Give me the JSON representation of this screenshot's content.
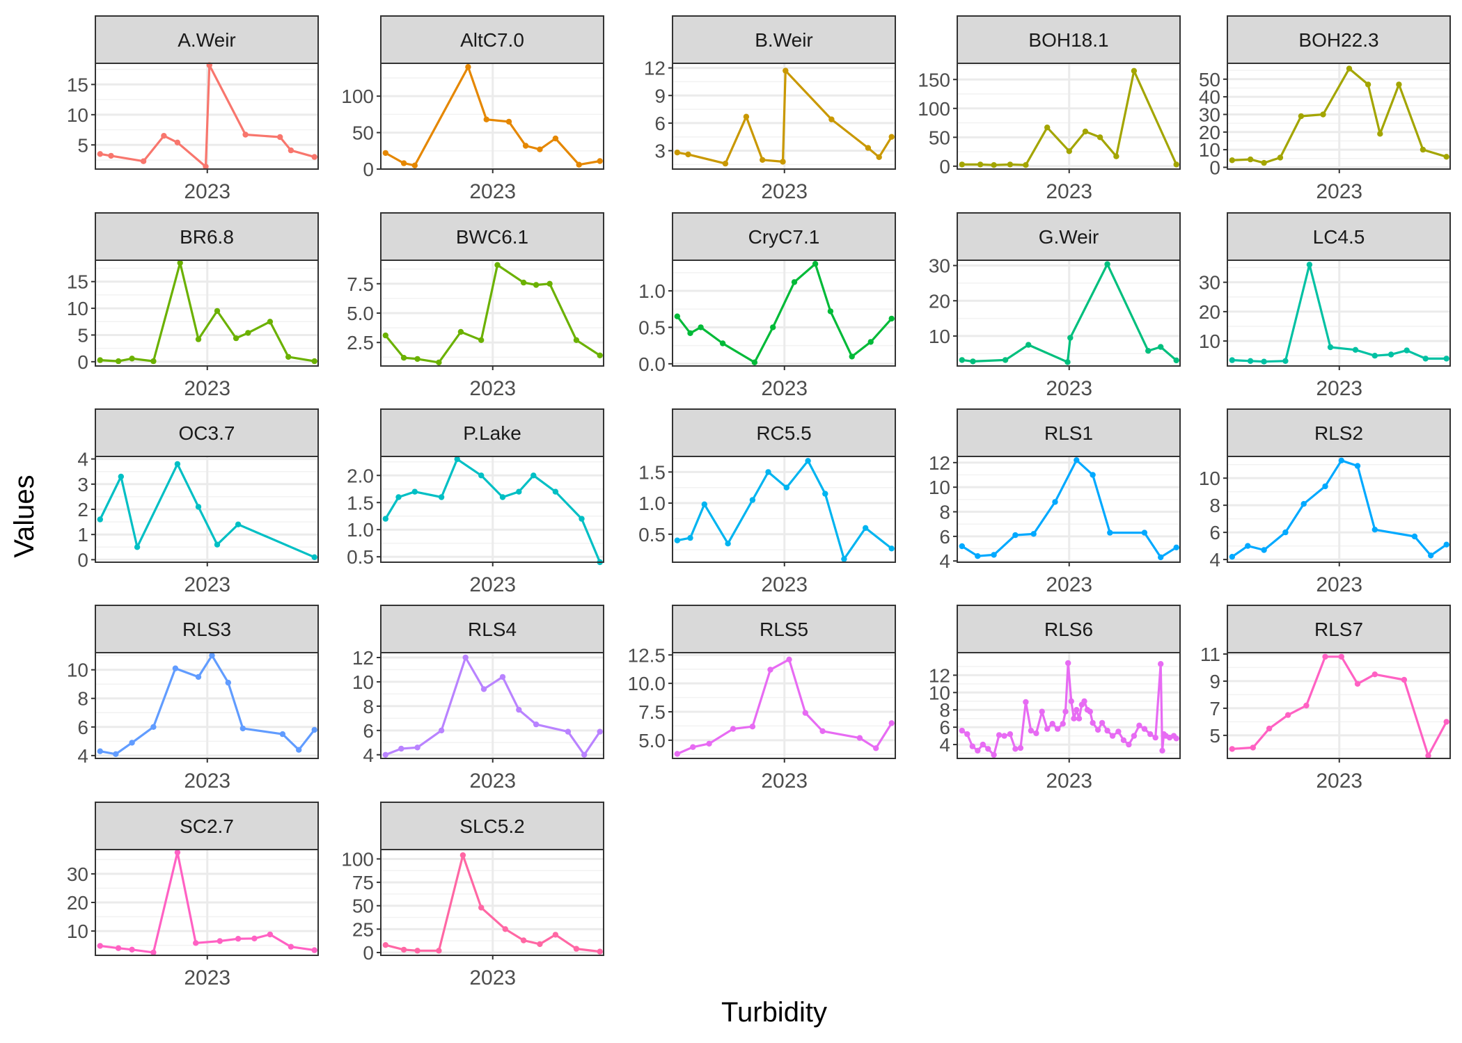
{
  "chart_data": {
    "type": "line",
    "title": "",
    "xlabel": "Turbidity",
    "ylabel": "Values",
    "grid": true,
    "legend": "none",
    "x_tick_label": "2023",
    "x_tick_date": "2023-01-01",
    "xlim": [
      "2022-06-01",
      "2023-08-01"
    ],
    "panels": [
      {
        "name": "A.Weir",
        "color": "#F8766D",
        "ylim": [
          1,
          18.5
        ],
        "yticks": [
          5,
          10,
          15
        ],
        "yticklabels": [
          "5",
          "10",
          "15"
        ],
        "x": [
          "2022-06-10",
          "2022-07-01",
          "2022-09-01",
          "2022-10-10",
          "2022-11-05",
          "2022-12-29",
          "2023-01-05",
          "2023-03-15",
          "2023-05-20",
          "2023-06-10",
          "2023-07-25"
        ],
        "values": [
          3.5,
          3.2,
          2.3,
          6.5,
          5.4,
          1.4,
          18.2,
          6.7,
          6.3,
          4.1,
          3.0
        ]
      },
      {
        "name": "AltC7.0",
        "color": "#E58700",
        "ylim": [
          0,
          145
        ],
        "yticks": [
          0,
          50,
          100
        ],
        "yticklabels": [
          "0",
          "50",
          "100"
        ],
        "x": [
          "2022-06-10",
          "2022-07-15",
          "2022-08-05",
          "2022-11-15",
          "2022-12-20",
          "2023-02-01",
          "2023-03-05",
          "2023-04-01",
          "2023-05-01",
          "2023-06-15",
          "2023-07-25"
        ],
        "values": [
          22,
          8,
          5,
          140,
          68,
          65,
          32,
          27,
          42,
          6,
          11
        ]
      },
      {
        "name": "B.Weir",
        "color": "#C99800",
        "ylim": [
          1,
          12.5
        ],
        "yticks": [
          3,
          6,
          9,
          12
        ],
        "yticklabels": [
          "3",
          "6",
          "9",
          "12"
        ],
        "x": [
          "2022-06-10",
          "2022-07-01",
          "2022-09-10",
          "2022-10-20",
          "2022-11-20",
          "2022-12-29",
          "2023-01-03",
          "2023-04-01",
          "2023-06-10",
          "2023-07-01",
          "2023-07-25"
        ],
        "values": [
          2.8,
          2.6,
          1.6,
          6.7,
          2.0,
          1.8,
          11.7,
          6.4,
          3.3,
          2.3,
          4.5
        ]
      },
      {
        "name": "BOH18.1",
        "color": "#A3A500",
        "ylim": [
          -5,
          178
        ],
        "yticks": [
          0,
          50,
          100,
          150
        ],
        "yticklabels": [
          "0",
          "50",
          "100",
          "150"
        ],
        "x": [
          "2022-06-10",
          "2022-07-15",
          "2022-08-10",
          "2022-09-10",
          "2022-10-10",
          "2022-11-20",
          "2023-01-01",
          "2023-02-01",
          "2023-03-01",
          "2023-04-01",
          "2023-05-05",
          "2023-07-25"
        ],
        "values": [
          3,
          3,
          2,
          3,
          2,
          67,
          26,
          60,
          50,
          17,
          165,
          3
        ]
      },
      {
        "name": "BOH22.3",
        "color": "#A3A500",
        "ylim": [
          -1,
          59
        ],
        "yticks": [
          0,
          10,
          20,
          30,
          40,
          50
        ],
        "yticklabels": [
          "0",
          "10",
          "20",
          "30",
          "40",
          "50"
        ],
        "x": [
          "2022-06-10",
          "2022-07-15",
          "2022-08-10",
          "2022-09-10",
          "2022-10-20",
          "2022-12-01",
          "2023-01-20",
          "2023-02-25",
          "2023-03-20",
          "2023-04-25",
          "2023-06-10",
          "2023-07-25"
        ],
        "values": [
          4,
          4.5,
          2.5,
          5.5,
          29,
          30,
          56,
          47,
          19,
          47,
          10,
          6
        ]
      },
      {
        "name": "BR6.8",
        "color": "#6BB100",
        "ylim": [
          -0.8,
          19
        ],
        "yticks": [
          0,
          5,
          10,
          15
        ],
        "yticklabels": [
          "0",
          "5",
          "10",
          "15"
        ],
        "x": [
          "2022-06-10",
          "2022-07-15",
          "2022-08-10",
          "2022-09-20",
          "2022-11-10",
          "2022-12-15",
          "2023-01-20",
          "2023-02-25",
          "2023-03-20",
          "2023-05-01",
          "2023-06-05",
          "2023-07-25"
        ],
        "values": [
          0.3,
          0.1,
          0.6,
          0.1,
          18.5,
          4.2,
          9.5,
          4.4,
          5.4,
          7.5,
          0.9,
          0.1
        ]
      },
      {
        "name": "BWC6.1",
        "color": "#6BB100",
        "ylim": [
          0.5,
          9.5
        ],
        "yticks": [
          2.5,
          5.0,
          7.5
        ],
        "yticklabels": [
          "2.5",
          "5.0",
          "7.5"
        ],
        "x": [
          "2022-06-10",
          "2022-07-15",
          "2022-08-10",
          "2022-09-20",
          "2022-11-01",
          "2022-12-10",
          "2023-01-10",
          "2023-03-01",
          "2023-03-25",
          "2023-04-20",
          "2023-06-10",
          "2023-07-25"
        ],
        "values": [
          3.1,
          1.2,
          1.1,
          0.8,
          3.4,
          2.7,
          9.1,
          7.6,
          7.4,
          7.5,
          2.7,
          1.4
        ]
      },
      {
        "name": "CryC7.1",
        "color": "#00BA38",
        "ylim": [
          -0.03,
          1.42
        ],
        "yticks": [
          0.0,
          0.5,
          1.0
        ],
        "yticklabels": [
          "0.0",
          "0.5",
          "1.0"
        ],
        "x": [
          "2022-06-10",
          "2022-07-05",
          "2022-07-25",
          "2022-09-05",
          "2022-11-05",
          "2022-12-10",
          "2023-01-20",
          "2023-03-01",
          "2023-03-30",
          "2023-05-10",
          "2023-06-15",
          "2023-07-25"
        ],
        "values": [
          0.65,
          0.42,
          0.5,
          0.28,
          0.02,
          0.5,
          1.12,
          1.37,
          0.72,
          0.1,
          0.3,
          0.62
        ]
      },
      {
        "name": "G.Weir",
        "color": "#00BF7D",
        "ylim": [
          1.5,
          31.5
        ],
        "yticks": [
          10,
          20,
          30
        ],
        "yticklabels": [
          "10",
          "20",
          "30"
        ],
        "x": [
          "2022-06-10",
          "2022-07-01",
          "2022-09-01",
          "2022-10-15",
          "2022-12-29",
          "2023-01-03",
          "2023-03-15",
          "2023-06-01",
          "2023-06-25",
          "2023-07-25"
        ],
        "values": [
          3.2,
          2.8,
          3.2,
          7.5,
          2.6,
          9.5,
          30.4,
          5.8,
          6.9,
          3.1
        ]
      },
      {
        "name": "LC4.5",
        "color": "#00C1A3",
        "ylim": [
          1.5,
          37.5
        ],
        "yticks": [
          10,
          20,
          30
        ],
        "yticklabels": [
          "10",
          "20",
          "30"
        ],
        "x": [
          "2022-06-10",
          "2022-07-15",
          "2022-08-10",
          "2022-09-20",
          "2022-11-05",
          "2022-12-15",
          "2023-02-01",
          "2023-03-10",
          "2023-04-10",
          "2023-05-10",
          "2023-06-15",
          "2023-07-25"
        ],
        "values": [
          3.5,
          3.2,
          3,
          3.2,
          36,
          7.9,
          7,
          5,
          5.4,
          6.8,
          4,
          4
        ]
      },
      {
        "name": "OC3.7",
        "color": "#00BFC4",
        "ylim": [
          -0.1,
          4.1
        ],
        "yticks": [
          0,
          1,
          2,
          3,
          4
        ],
        "yticklabels": [
          "0",
          "1",
          "2",
          "3",
          "4"
        ],
        "x": [
          "2022-06-10",
          "2022-07-20",
          "2022-08-20",
          "2022-11-05",
          "2022-12-15",
          "2023-01-20",
          "2023-03-01",
          "2023-07-25"
        ],
        "values": [
          1.6,
          3.3,
          0.5,
          3.8,
          2.1,
          0.6,
          1.4,
          0.1
        ]
      },
      {
        "name": "P.Lake",
        "color": "#00BFC4",
        "ylim": [
          0.4,
          2.35
        ],
        "yticks": [
          0.5,
          1.0,
          1.5,
          2.0
        ],
        "yticklabels": [
          "0.5",
          "1.0",
          "1.5",
          "2.0"
        ],
        "x": [
          "2022-06-10",
          "2022-07-05",
          "2022-08-05",
          "2022-09-25",
          "2022-10-25",
          "2022-12-10",
          "2023-01-20",
          "2023-02-20",
          "2023-03-20",
          "2023-05-01",
          "2023-06-20",
          "2023-07-25"
        ],
        "values": [
          1.2,
          1.6,
          1.7,
          1.6,
          2.3,
          2.0,
          1.6,
          1.7,
          2.0,
          1.7,
          1.2,
          0.4
        ]
      },
      {
        "name": "RC5.5",
        "color": "#00B4F0",
        "ylim": [
          0.05,
          1.75
        ],
        "yticks": [
          0.5,
          1.0,
          1.5
        ],
        "yticklabels": [
          "0.5",
          "1.0",
          "1.5"
        ],
        "x": [
          "2022-06-10",
          "2022-07-05",
          "2022-08-01",
          "2022-09-15",
          "2022-11-01",
          "2022-12-01",
          "2023-01-05",
          "2023-02-15",
          "2023-03-20",
          "2023-04-25",
          "2023-06-05",
          "2023-07-25"
        ],
        "values": [
          0.4,
          0.44,
          0.98,
          0.35,
          1.05,
          1.5,
          1.25,
          1.68,
          1.15,
          0.1,
          0.6,
          0.27
        ]
      },
      {
        "name": "RLS1",
        "color": "#00A9FF",
        "ylim": [
          3.9,
          12.5
        ],
        "yticks": [
          4,
          6,
          8,
          10,
          12
        ],
        "yticklabels": [
          "4",
          "6",
          "8",
          "10",
          "12"
        ],
        "x": [
          "2022-06-10",
          "2022-07-10",
          "2022-08-10",
          "2022-09-20",
          "2022-10-25",
          "2022-12-05",
          "2023-01-15",
          "2023-02-15",
          "2023-03-20",
          "2023-05-25",
          "2023-06-25",
          "2023-07-25"
        ],
        "values": [
          5.2,
          4.4,
          4.5,
          6.1,
          6.2,
          8.8,
          12.2,
          11.0,
          6.3,
          6.3,
          4.3,
          5.1
        ]
      },
      {
        "name": "RLS2",
        "color": "#00A9FF",
        "ylim": [
          3.8,
          11.6
        ],
        "yticks": [
          4,
          6,
          8,
          10
        ],
        "yticklabels": [
          "4",
          "6",
          "8",
          "10"
        ],
        "x": [
          "2022-06-10",
          "2022-07-10",
          "2022-08-10",
          "2022-09-20",
          "2022-10-25",
          "2022-12-05",
          "2023-01-05",
          "2023-02-05",
          "2023-03-10",
          "2023-05-25",
          "2023-06-25",
          "2023-07-25"
        ],
        "values": [
          4.2,
          5.0,
          4.7,
          6.0,
          8.1,
          9.4,
          11.3,
          10.9,
          6.2,
          5.7,
          4.3,
          5.1
        ]
      },
      {
        "name": "RLS3",
        "color": "#619CFF",
        "ylim": [
          3.8,
          11.2
        ],
        "yticks": [
          4,
          6,
          8,
          10
        ],
        "yticklabels": [
          "4",
          "6",
          "8",
          "10"
        ],
        "x": [
          "2022-06-10",
          "2022-07-10",
          "2022-08-10",
          "2022-09-20",
          "2022-11-01",
          "2022-12-15",
          "2023-01-10",
          "2023-02-10",
          "2023-03-10",
          "2023-05-25",
          "2023-06-25",
          "2023-07-25"
        ],
        "values": [
          4.3,
          4.1,
          4.9,
          6.0,
          10.1,
          9.5,
          11.0,
          9.1,
          5.9,
          5.5,
          4.4,
          5.8
        ]
      },
      {
        "name": "RLS4",
        "color": "#B983FF",
        "ylim": [
          3.7,
          12.4
        ],
        "yticks": [
          4,
          6,
          8,
          10,
          12
        ],
        "yticklabels": [
          "4",
          "6",
          "8",
          "10",
          "12"
        ],
        "x": [
          "2022-06-10",
          "2022-07-10",
          "2022-08-10",
          "2022-09-25",
          "2022-11-10",
          "2022-12-15",
          "2023-01-20",
          "2023-02-20",
          "2023-03-25",
          "2023-05-25",
          "2023-06-25",
          "2023-07-25"
        ],
        "values": [
          4.0,
          4.5,
          4.6,
          6.0,
          12.0,
          9.4,
          10.4,
          7.7,
          6.5,
          5.9,
          4.0,
          5.9
        ]
      },
      {
        "name": "RLS5",
        "color": "#E76BF3",
        "ylim": [
          3.4,
          12.7
        ],
        "yticks": [
          5.0,
          7.5,
          10.0,
          12.5
        ],
        "yticklabels": [
          "5.0",
          "7.5",
          "10.0",
          "12.5"
        ],
        "x": [
          "2022-06-10",
          "2022-07-10",
          "2022-08-10",
          "2022-09-25",
          "2022-11-01",
          "2022-12-05",
          "2023-01-10",
          "2023-02-10",
          "2023-03-15",
          "2023-05-25",
          "2023-06-25",
          "2023-07-25"
        ],
        "values": [
          3.8,
          4.4,
          4.7,
          6.0,
          6.2,
          11.2,
          12.1,
          7.4,
          5.8,
          5.2,
          4.3,
          6.5
        ]
      },
      {
        "name": "RLS6",
        "color": "#E76BF3",
        "ylim": [
          2.4,
          14.6
        ],
        "yticks": [
          4,
          6,
          8,
          10,
          12
        ],
        "yticklabels": [
          "4",
          "6",
          "8",
          "10",
          "12"
        ],
        "x": [
          "2022-06-10",
          "2022-06-20",
          "2022-06-30",
          "2022-07-10",
          "2022-07-20",
          "2022-07-30",
          "2022-08-10",
          "2022-08-20",
          "2022-08-30",
          "2022-09-10",
          "2022-09-20",
          "2022-09-30",
          "2022-10-10",
          "2022-10-20",
          "2022-10-30",
          "2022-11-10",
          "2022-11-20",
          "2022-11-30",
          "2022-12-10",
          "2022-12-20",
          "2022-12-25",
          "2022-12-30",
          "2023-01-05",
          "2023-01-10",
          "2023-01-15",
          "2023-01-20",
          "2023-01-25",
          "2023-01-30",
          "2023-02-05",
          "2023-02-10",
          "2023-02-15",
          "2023-02-25",
          "2023-03-05",
          "2023-03-15",
          "2023-03-25",
          "2023-04-05",
          "2023-04-15",
          "2023-04-25",
          "2023-05-05",
          "2023-05-15",
          "2023-05-25",
          "2023-06-05",
          "2023-06-15",
          "2023-06-25",
          "2023-06-28",
          "2023-07-01",
          "2023-07-05",
          "2023-07-12",
          "2023-07-20",
          "2023-07-25"
        ],
        "values": [
          5.6,
          5.2,
          3.8,
          3.3,
          4.0,
          3.5,
          2.8,
          5.1,
          5.0,
          5.2,
          3.5,
          3.6,
          8.9,
          5.6,
          5.3,
          7.8,
          5.8,
          6.4,
          5.8,
          6.4,
          7.8,
          13.4,
          9.0,
          7.0,
          8.0,
          7.0,
          8.6,
          9.0,
          8.0,
          7.8,
          6.5,
          5.7,
          6.5,
          5.6,
          5.0,
          5.5,
          4.5,
          4.0,
          5.0,
          6.2,
          5.8,
          5.2,
          4.8,
          13.3,
          3.3,
          5.2,
          5.0,
          4.8,
          5.0,
          4.7
        ]
      },
      {
        "name": "RLS7",
        "color": "#FF61C3",
        "ylim": [
          3.3,
          11.1
        ],
        "yticks": [
          5,
          7,
          9,
          11
        ],
        "yticklabels": [
          "5",
          "7",
          "9",
          "11"
        ],
        "x": [
          "2022-06-10",
          "2022-07-20",
          "2022-08-20",
          "2022-09-25",
          "2022-10-30",
          "2022-12-05",
          "2023-01-05",
          "2023-02-05",
          "2023-03-10",
          "2023-05-05",
          "2023-06-20",
          "2023-07-25"
        ],
        "values": [
          4.0,
          4.1,
          5.5,
          6.5,
          7.2,
          10.8,
          10.8,
          8.8,
          9.5,
          9.1,
          3.5,
          6.0
        ]
      },
      {
        "name": "SC2.7",
        "color": "#FF61C3",
        "ylim": [
          1.5,
          38.5
        ],
        "yticks": [
          10,
          20,
          30
        ],
        "yticklabels": [
          "10",
          "20",
          "30"
        ],
        "x": [
          "2022-06-10",
          "2022-07-15",
          "2022-08-10",
          "2022-09-20",
          "2022-11-05",
          "2022-12-10",
          "2023-01-25",
          "2023-03-01",
          "2023-04-01",
          "2023-05-01",
          "2023-06-10",
          "2023-07-25"
        ],
        "values": [
          4.8,
          4.0,
          3.5,
          2.5,
          37.5,
          5.8,
          6.5,
          7.3,
          7.4,
          8.8,
          4.5,
          3.3
        ]
      },
      {
        "name": "SLC5.2",
        "color": "#FF67A4",
        "ylim": [
          -3,
          110
        ],
        "yticks": [
          0,
          25,
          50,
          75,
          100
        ],
        "yticklabels": [
          "0",
          "25",
          "50",
          "75",
          "100"
        ],
        "x": [
          "2022-06-10",
          "2022-07-15",
          "2022-08-10",
          "2022-09-20",
          "2022-11-05",
          "2022-12-10",
          "2023-01-25",
          "2023-03-01",
          "2023-04-01",
          "2023-05-01",
          "2023-06-10",
          "2023-07-25"
        ],
        "values": [
          8,
          3,
          2,
          2,
          104,
          48,
          25,
          13,
          9,
          19,
          4,
          1
        ]
      }
    ]
  }
}
